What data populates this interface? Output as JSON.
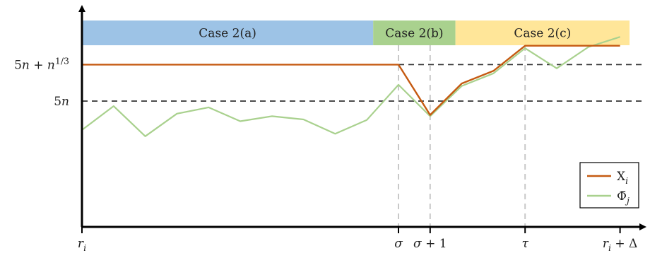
{
  "chart_data": {
    "type": "line",
    "regions": [
      {
        "label": "Case 2(a)",
        "start": 0,
        "end": 9.2,
        "color": "#9dc3e6"
      },
      {
        "label": "Case 2(b)",
        "start": 9.2,
        "end": 11.8,
        "color": "#a9d18e"
      },
      {
        "label": "Case 2(c)",
        "start": 11.8,
        "end": 17.3,
        "color": "#ffe699"
      }
    ],
    "x_ticks": [
      {
        "x": 0,
        "label": "r_i"
      },
      {
        "x": 10,
        "label": "σ"
      },
      {
        "x": 11,
        "label": "σ + 1"
      },
      {
        "x": 14,
        "label": "τ"
      },
      {
        "x": 17,
        "label": "r_i + Δ"
      }
    ],
    "y_levels": [
      {
        "y": 5,
        "label": "5n"
      },
      {
        "y": 6.45,
        "label": "5n + n^{1/3}"
      }
    ],
    "vertical_markers": [
      10,
      11,
      14
    ],
    "series": [
      {
        "name": "X_i",
        "color": "#c55a11",
        "x": [
          0,
          10,
          11,
          12,
          13,
          14,
          15,
          16,
          17
        ],
        "y": [
          6.45,
          6.45,
          4.45,
          5.7,
          6.2,
          7.2,
          7.2,
          7.2,
          7.2
        ]
      },
      {
        "name": "Φ̄_j",
        "color": "#a9d18e",
        "x": [
          0,
          1,
          2,
          3,
          4,
          5,
          6,
          7,
          8,
          9,
          10,
          11,
          12,
          13,
          14,
          15,
          16,
          17
        ],
        "y": [
          3.85,
          4.8,
          3.6,
          4.5,
          4.75,
          4.2,
          4.4,
          4.27,
          3.7,
          4.25,
          5.65,
          4.4,
          5.6,
          6.1,
          7.1,
          6.3,
          7.15,
          7.55
        ]
      }
    ],
    "xlim": [
      0,
      18
    ],
    "ylim": [
      0,
      9
    ],
    "legend_position": "bottom-right"
  }
}
